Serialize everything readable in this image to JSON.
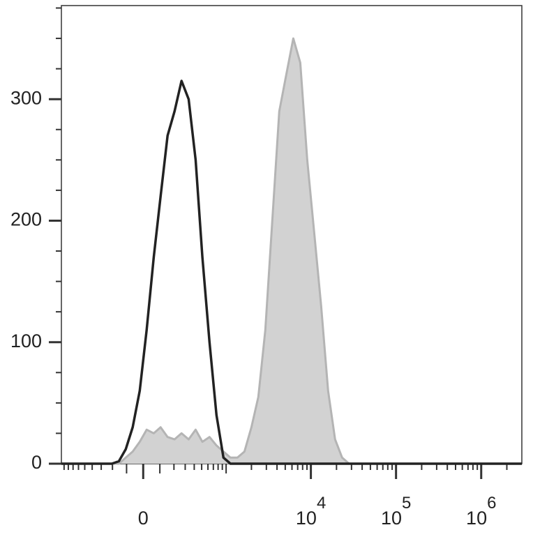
{
  "chart_data": {
    "type": "histogram-overlay",
    "xscale": "biexponential",
    "xlim": [
      -970,
      3000000
    ],
    "xticks": [
      {
        "value": 0,
        "label": "0"
      },
      {
        "value": 10000,
        "label": "10",
        "sup": "4"
      },
      {
        "value": 100000,
        "label": "10",
        "sup": "5"
      },
      {
        "value": 1000000,
        "label": "10",
        "sup": "6"
      }
    ],
    "ylim": [
      0,
      377
    ],
    "yticks": [
      0,
      100,
      200,
      300
    ],
    "x": [
      -970,
      -265,
      -205,
      -152,
      -105,
      -62,
      -20,
      20,
      62,
      105,
      152,
      205,
      265,
      336,
      417,
      511,
      627,
      764,
      929,
      1127,
      1363,
      1655,
      1998,
      2412,
      2915,
      3523,
      4255,
      5140,
      6210,
      7500,
      9060,
      10940,
      13200,
      15950,
      19260,
      23260,
      28100,
      185000,
      3000000
    ],
    "series": [
      {
        "color": "#b4b4b4",
        "fill": "#d2d2d2",
        "values": [
          0,
          0,
          0,
          0,
          5,
          10,
          18,
          28,
          25,
          30,
          22,
          20,
          25,
          20,
          28,
          18,
          22,
          15,
          10,
          5,
          5,
          10,
          30,
          55,
          110,
          200,
          290,
          320,
          350,
          330,
          250,
          190,
          130,
          60,
          20,
          5,
          0,
          0,
          0
        ]
      },
      {
        "color": "#222222",
        "fill": "none",
        "values": [
          0,
          0,
          0,
          2,
          12,
          30,
          60,
          110,
          170,
          220,
          270,
          290,
          315,
          300,
          250,
          170,
          100,
          40,
          5,
          0,
          0,
          0,
          0,
          0,
          0,
          0,
          0,
          0,
          0,
          0,
          0,
          0,
          0,
          0,
          0,
          0,
          0,
          0,
          0
        ]
      }
    ]
  }
}
